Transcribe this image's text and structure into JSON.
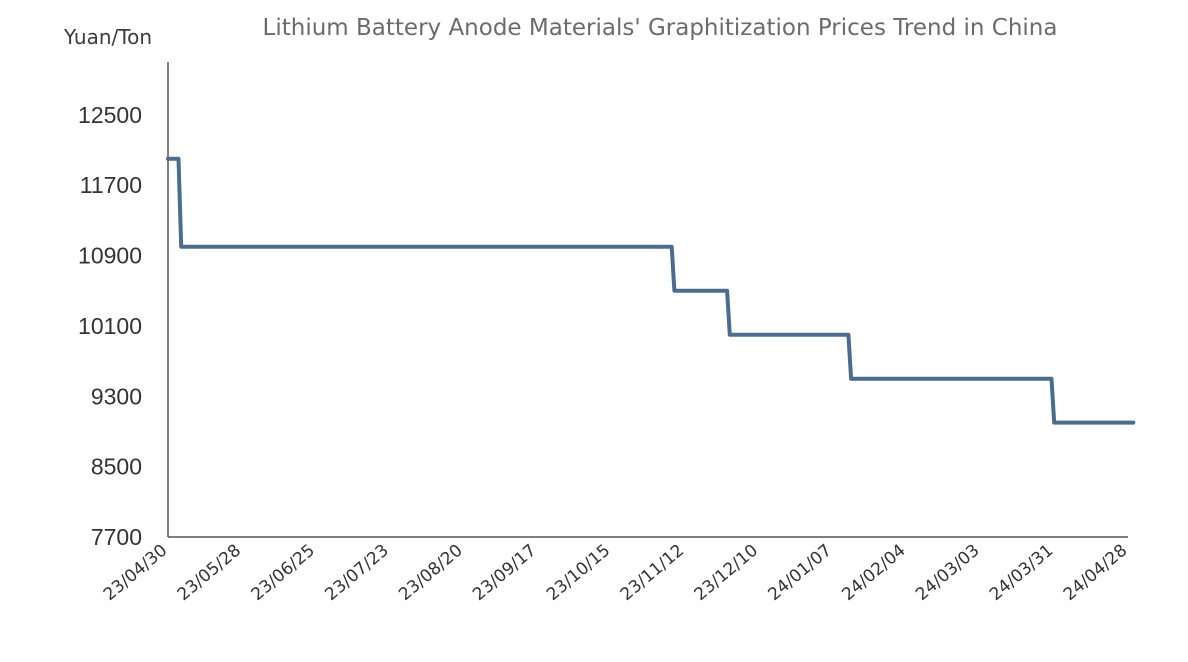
{
  "chart_data": {
    "type": "line",
    "step": true,
    "title": "Lithium Battery Anode Materials' Graphitization Prices Trend in China",
    "ylabel": "Yuan/Ton",
    "xlabel": "",
    "ylim": [
      7700,
      13100
    ],
    "yticks": [
      7700,
      8500,
      9300,
      10100,
      10900,
      11700,
      12500
    ],
    "xlim": [
      "2023-04-30",
      "2024-04-28"
    ],
    "xticks": [
      {
        "date": "2023-04-30",
        "label": "23/04/30"
      },
      {
        "date": "2023-05-28",
        "label": "23/05/28"
      },
      {
        "date": "2023-06-25",
        "label": "23/06/25"
      },
      {
        "date": "2023-07-23",
        "label": "23/07/23"
      },
      {
        "date": "2023-08-20",
        "label": "23/08/20"
      },
      {
        "date": "2023-09-17",
        "label": "23/09/17"
      },
      {
        "date": "2023-10-15",
        "label": "23/10/15"
      },
      {
        "date": "2023-11-12",
        "label": "23/11/12"
      },
      {
        "date": "2023-12-10",
        "label": "23/12/10"
      },
      {
        "date": "2024-01-07",
        "label": "24/01/07"
      },
      {
        "date": "2024-02-04",
        "label": "24/02/04"
      },
      {
        "date": "2024-03-03",
        "label": "24/03/03"
      },
      {
        "date": "2024-03-31",
        "label": "24/03/31"
      },
      {
        "date": "2024-04-28",
        "label": "24/04/28"
      }
    ],
    "grid": false,
    "series": [
      {
        "color": "#4a6c8e",
        "points": [
          {
            "x": "2023-04-30",
            "y": 12000
          },
          {
            "x": "2023-05-04",
            "y": 12000
          },
          {
            "x": "2023-05-05",
            "y": 11000
          },
          {
            "x": "2023-11-07",
            "y": 11000
          },
          {
            "x": "2023-11-08",
            "y": 10500
          },
          {
            "x": "2023-11-28",
            "y": 10500
          },
          {
            "x": "2023-11-29",
            "y": 10000
          },
          {
            "x": "2024-01-13",
            "y": 10000
          },
          {
            "x": "2024-01-14",
            "y": 9500
          },
          {
            "x": "2024-03-30",
            "y": 9500
          },
          {
            "x": "2024-03-31",
            "y": 9000
          },
          {
            "x": "2024-04-30",
            "y": 9000
          }
        ]
      }
    ]
  }
}
